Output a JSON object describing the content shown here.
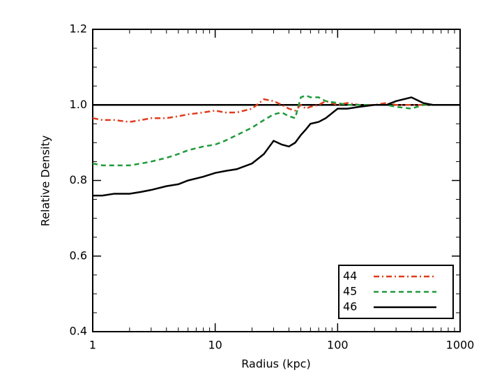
{
  "chart_data": {
    "type": "line",
    "xlabel": "Radius (kpc)",
    "ylabel": "Relative Density",
    "xscale": "log",
    "xlim": [
      1,
      1000
    ],
    "xticks": [
      1,
      10,
      100,
      1000
    ],
    "ylim": [
      0.4,
      1.2
    ],
    "yticks": [
      0.4,
      0.6,
      0.8,
      {
        "value": 1,
        "label": "1.0"
      },
      1.2
    ],
    "minor_ticks": true,
    "hline": 1,
    "legend": "lower right",
    "x": [
      1,
      1.2,
      1.5,
      2,
      2.5,
      3,
      4,
      5,
      6,
      8,
      10,
      12,
      15,
      20,
      25,
      30,
      35,
      40,
      45,
      50,
      55,
      60,
      70,
      80,
      100,
      120,
      150,
      200,
      250,
      300,
      400,
      500,
      600,
      800,
      1000
    ],
    "series": [
      {
        "name": "44",
        "color": "#e03c1c",
        "linestyle": "dashdot",
        "values": [
          0.965,
          0.96,
          0.96,
          0.955,
          0.96,
          0.965,
          0.965,
          0.97,
          0.975,
          0.98,
          0.985,
          0.98,
          0.98,
          0.99,
          1.015,
          1.01,
          1.0,
          0.99,
          0.985,
          1.0,
          0.99,
          0.995,
          1.0,
          1.01,
          1.0,
          1.005,
          1.0,
          1.0,
          1.005,
          1.0,
          1.0,
          1.0,
          1.0,
          1.0,
          1.0
        ]
      },
      {
        "name": "45",
        "color": "#1f9a3a",
        "linestyle": "dash",
        "values": [
          0.845,
          0.84,
          0.84,
          0.84,
          0.845,
          0.85,
          0.86,
          0.87,
          0.88,
          0.89,
          0.895,
          0.905,
          0.92,
          0.94,
          0.96,
          0.975,
          0.98,
          0.97,
          0.965,
          1.02,
          1.025,
          1.02,
          1.02,
          1.01,
          1.005,
          1.0,
          1.0,
          1.0,
          1.0,
          0.995,
          0.99,
          1.0,
          1.0,
          1.0,
          1.0
        ]
      },
      {
        "name": "46",
        "color": "#000000",
        "linestyle": "solid",
        "values": [
          0.76,
          0.76,
          0.765,
          0.765,
          0.77,
          0.775,
          0.785,
          0.79,
          0.8,
          0.81,
          0.82,
          0.825,
          0.83,
          0.845,
          0.87,
          0.905,
          0.895,
          0.89,
          0.9,
          0.92,
          0.935,
          0.95,
          0.955,
          0.965,
          0.99,
          0.99,
          0.995,
          1.0,
          1.0,
          1.01,
          1.02,
          1.005,
          1.0,
          1.0,
          1.0
        ]
      }
    ]
  }
}
